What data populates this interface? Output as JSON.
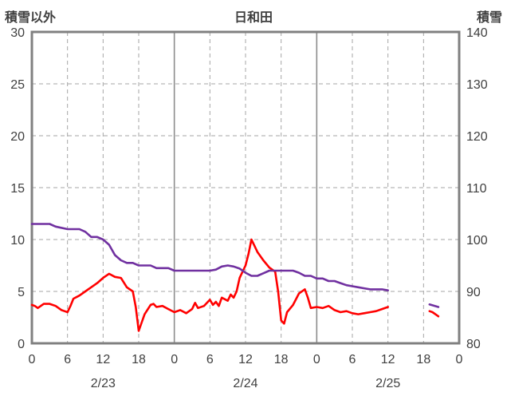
{
  "header": {
    "left_axis_title": "積雪以外",
    "chart_title": "日和田",
    "right_axis_title": "積雪"
  },
  "colors": {
    "red_series": "#ff0000",
    "purple_series": "#7030a0",
    "border": "#808080",
    "grid_dashed": "#a6a6a6",
    "grid_solid": "#8c8c8c",
    "text": "#3f3f3f"
  },
  "chart_data": {
    "type": "line",
    "title": "日和田",
    "left_axis": {
      "label": "積雪以外",
      "min": 0,
      "max": 30,
      "ticks": [
        0,
        5,
        10,
        15,
        20,
        25,
        30
      ]
    },
    "right_axis": {
      "label": "積雪",
      "min": 80,
      "max": 140,
      "ticks": [
        80,
        90,
        100,
        110,
        120,
        130,
        140
      ]
    },
    "x_axis": {
      "min_hour": 0,
      "max_hour": 72,
      "tick_interval": 6,
      "tick_labels": [
        "0",
        "6",
        "12",
        "18",
        "0",
        "6",
        "12",
        "18",
        "0",
        "6",
        "12",
        "18",
        "0"
      ],
      "date_labels": [
        {
          "label": "2/23",
          "hour": 12
        },
        {
          "label": "2/24",
          "hour": 36
        },
        {
          "label": "2/25",
          "hour": 60
        }
      ],
      "day_boundary_hours": [
        24,
        48
      ]
    },
    "grid": {
      "horizontal": "dashed",
      "vertical_minor": "dashed",
      "vertical_day": "solid"
    },
    "series": [
      {
        "name": "積雪以外",
        "color": "#ff0000",
        "axis": "left",
        "segments": [
          [
            [
              0,
              3.7
            ],
            [
              0.5,
              3.6
            ],
            [
              1,
              3.4
            ],
            [
              2,
              3.8
            ],
            [
              3,
              3.8
            ],
            [
              4,
              3.6
            ],
            [
              5,
              3.2
            ],
            [
              5.5,
              3.1
            ],
            [
              6,
              3.0
            ],
            [
              6.5,
              3.6
            ],
            [
              7,
              4.3
            ],
            [
              8,
              4.6
            ],
            [
              9,
              5.0
            ],
            [
              10,
              5.4
            ],
            [
              11,
              5.8
            ],
            [
              12,
              6.3
            ],
            [
              13,
              6.7
            ],
            [
              14,
              6.4
            ],
            [
              15,
              6.3
            ],
            [
              16,
              5.4
            ],
            [
              17,
              5.0
            ],
            [
              17.5,
              3.5
            ],
            [
              18,
              1.2
            ],
            [
              18.5,
              2.0
            ],
            [
              19,
              2.8
            ],
            [
              20,
              3.7
            ],
            [
              20.5,
              3.8
            ],
            [
              21,
              3.5
            ],
            [
              22,
              3.6
            ],
            [
              23,
              3.3
            ],
            [
              24,
              3.0
            ],
            [
              25,
              3.2
            ],
            [
              26,
              2.9
            ],
            [
              27,
              3.3
            ],
            [
              27.5,
              3.9
            ],
            [
              28,
              3.4
            ],
            [
              29,
              3.6
            ],
            [
              30,
              4.2
            ],
            [
              30.5,
              3.7
            ],
            [
              31,
              4.0
            ],
            [
              31.5,
              3.6
            ],
            [
              32,
              4.4
            ],
            [
              33,
              4.1
            ],
            [
              33.5,
              4.7
            ],
            [
              34,
              4.4
            ],
            [
              34.5,
              5.0
            ],
            [
              35,
              6.3
            ],
            [
              36,
              7.5
            ],
            [
              36.5,
              8.6
            ],
            [
              37,
              10.0
            ],
            [
              37.5,
              9.4
            ],
            [
              38,
              8.8
            ],
            [
              39,
              8.0
            ],
            [
              40,
              7.3
            ],
            [
              41,
              6.9
            ],
            [
              41.5,
              5.0
            ],
            [
              42,
              2.2
            ],
            [
              42.5,
              1.9
            ],
            [
              43,
              3.0
            ],
            [
              44,
              3.7
            ],
            [
              45,
              4.8
            ],
            [
              46,
              5.2
            ],
            [
              46.5,
              4.4
            ],
            [
              47,
              3.4
            ],
            [
              48,
              3.5
            ],
            [
              49,
              3.4
            ],
            [
              50,
              3.6
            ],
            [
              51,
              3.2
            ],
            [
              52,
              3.0
            ],
            [
              53,
              3.1
            ],
            [
              54,
              2.9
            ],
            [
              55,
              2.8
            ],
            [
              56,
              2.9
            ],
            [
              57,
              3.0
            ],
            [
              58,
              3.1
            ],
            [
              59,
              3.3
            ],
            [
              60,
              3.5
            ]
          ],
          [
            [
              67,
              3.1
            ],
            [
              67.5,
              3.0
            ],
            [
              68,
              2.8
            ],
            [
              68.5,
              2.6
            ]
          ]
        ]
      },
      {
        "name": "積雪",
        "color": "#7030a0",
        "axis": "right",
        "segments": [
          [
            [
              0,
              103
            ],
            [
              3,
              103
            ],
            [
              4,
              102.5
            ],
            [
              6,
              102
            ],
            [
              8,
              102
            ],
            [
              9,
              101.5
            ],
            [
              10,
              100.5
            ],
            [
              11,
              100.5
            ],
            [
              12,
              100
            ],
            [
              13,
              99
            ],
            [
              14,
              97
            ],
            [
              15,
              96
            ],
            [
              16,
              95.5
            ],
            [
              17,
              95.5
            ],
            [
              18,
              95
            ],
            [
              20,
              95
            ],
            [
              21,
              94.5
            ],
            [
              23,
              94.5
            ],
            [
              24,
              94
            ],
            [
              30,
              94
            ],
            [
              31,
              94.2
            ],
            [
              32,
              94.8
            ],
            [
              33,
              95
            ],
            [
              34,
              94.8
            ],
            [
              35,
              94.4
            ],
            [
              36,
              93.6
            ],
            [
              37,
              93
            ],
            [
              38,
              93
            ],
            [
              39,
              93.5
            ],
            [
              40,
              94
            ],
            [
              44,
              94
            ],
            [
              45,
              93.6
            ],
            [
              46,
              93
            ],
            [
              47,
              93
            ],
            [
              48,
              92.5
            ],
            [
              49,
              92.5
            ],
            [
              50,
              92
            ],
            [
              51,
              92
            ],
            [
              52,
              91.6
            ],
            [
              53,
              91.2
            ],
            [
              54,
              91
            ],
            [
              55,
              90.8
            ],
            [
              56,
              90.6
            ],
            [
              57,
              90.4
            ],
            [
              59,
              90.4
            ],
            [
              60,
              90.2
            ]
          ],
          [
            [
              67,
              87.5
            ],
            [
              68.5,
              87
            ]
          ]
        ]
      }
    ]
  }
}
